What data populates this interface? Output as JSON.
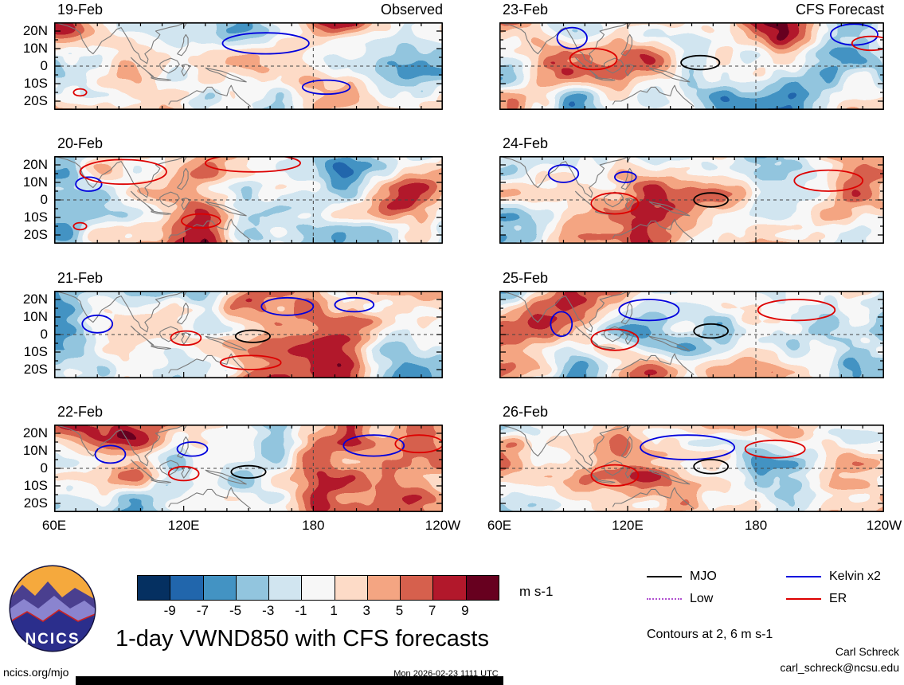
{
  "chart_data": {
    "type": "heatmap",
    "title": "1-day VWND850 with CFS forecasts",
    "variable": "VWND850",
    "units": "m s-1",
    "x_ticks": [
      "60E",
      "120E",
      "180",
      "120W"
    ],
    "x_tick_lons": [
      60,
      120,
      180,
      240
    ],
    "y_ticks": [
      "20N",
      "10N",
      "0",
      "10S",
      "20S"
    ],
    "y_tick_lats": [
      20,
      10,
      0,
      -10,
      -20
    ],
    "lon_range": [
      60,
      240
    ],
    "lat_range": [
      -25,
      25
    ],
    "colorbar": {
      "levels": [
        -9,
        -7,
        -5,
        -3,
        -1,
        1,
        3,
        5,
        7,
        9
      ],
      "colors": [
        "#053061",
        "#2166ac",
        "#4393c3",
        "#92c5de",
        "#d1e5f0",
        "#f7f7f7",
        "#fddbc7",
        "#f4a582",
        "#d6604d",
        "#b2182b",
        "#67001f"
      ],
      "label": "m s-1"
    },
    "legend": [
      {
        "label": "MJO",
        "color": "#000000",
        "style": "solid"
      },
      {
        "label": "Low",
        "color": "#b050d0",
        "style": "dotted"
      },
      {
        "label": "Kelvin x2",
        "color": "#0000dd",
        "style": "solid"
      },
      {
        "label": "ER",
        "color": "#dd0000",
        "style": "solid"
      }
    ],
    "contour_note": "Contours at 2, 6 m s-1",
    "columns": [
      {
        "title": "Observed",
        "panels": [
          {
            "date": "19-Feb",
            "seed": 3,
            "overlays": [
              [
                "Kelvin x2",
                158,
                13,
                20,
                6
              ],
              [
                "Kelvin x2",
                186,
                -12,
                11,
                4
              ],
              [
                "ER",
                72,
                -15,
                3,
                2
              ]
            ]
          },
          {
            "date": "20-Feb",
            "seed": 17,
            "overlays": [
              [
                "Kelvin x2",
                76,
                9,
                6,
                4
              ],
              [
                "ER",
                92,
                16,
                20,
                7
              ],
              [
                "ER",
                152,
                21,
                22,
                5
              ],
              [
                "ER",
                128,
                -12,
                9,
                4
              ],
              [
                "ER",
                72,
                -15,
                3,
                2
              ]
            ]
          },
          {
            "date": "21-Feb",
            "seed": 42,
            "overlays": [
              [
                "Kelvin x2",
                80,
                6,
                7,
                5
              ],
              [
                "Kelvin x2",
                168,
                16,
                12,
                5
              ],
              [
                "Kelvin x2",
                199,
                17,
                9,
                4
              ],
              [
                "ER",
                121,
                -2,
                7,
                4
              ],
              [
                "MJO",
                152,
                -1,
                8,
                3.5
              ],
              [
                "ER",
                151,
                -16,
                14,
                4
              ]
            ]
          },
          {
            "date": "22-Feb",
            "seed": 7,
            "overlays": [
              [
                "Kelvin x2",
                86,
                8,
                7,
                5
              ],
              [
                "Kelvin x2",
                124,
                11,
                7,
                4
              ],
              [
                "Kelvin x2",
                208,
                13,
                14,
                6
              ],
              [
                "ER",
                120,
                -3,
                7,
                4
              ],
              [
                "MJO",
                150,
                -2,
                8,
                3.5
              ],
              [
                "ER",
                229,
                14,
                11,
                5
              ]
            ]
          }
        ]
      },
      {
        "title": "CFS Forecast",
        "panels": [
          {
            "date": "23-Feb",
            "seed": 91,
            "overlays": [
              [
                "Kelvin x2",
                94,
                16,
                7,
                6
              ],
              [
                "ER",
                104,
                4,
                11,
                6
              ],
              [
                "MJO",
                154,
                2,
                9,
                4
              ],
              [
                "Kelvin x2",
                226,
                18,
                11,
                6
              ],
              [
                "ER",
                234,
                13,
                9,
                4
              ]
            ]
          },
          {
            "date": "24-Feb",
            "seed": 64,
            "overlays": [
              [
                "Kelvin x2",
                90,
                15,
                7,
                5
              ],
              [
                "Kelvin x2",
                119,
                13,
                5,
                3
              ],
              [
                "ER",
                114,
                -2,
                11,
                6
              ],
              [
                "MJO",
                159,
                0,
                8,
                4
              ],
              [
                "ER",
                214,
                11,
                16,
                6
              ]
            ]
          },
          {
            "date": "25-Feb",
            "seed": 28,
            "overlays": [
              [
                "Kelvin x2",
                130,
                14,
                14,
                6
              ],
              [
                "Kelvin x2",
                89,
                6,
                5,
                7
              ],
              [
                "ER",
                114,
                -3,
                11,
                6
              ],
              [
                "MJO",
                159,
                2,
                8,
                4
              ],
              [
                "ER",
                199,
                14,
                18,
                6
              ]
            ]
          },
          {
            "date": "26-Feb",
            "seed": 55,
            "overlays": [
              [
                "Kelvin x2",
                148,
                12,
                22,
                7
              ],
              [
                "ER",
                114,
                -4,
                11,
                6
              ],
              [
                "MJO",
                159,
                1,
                8,
                4
              ],
              [
                "ER",
                189,
                11,
                14,
                5
              ]
            ]
          }
        ]
      }
    ],
    "coastlines": [
      [
        [
          60,
          25
        ],
        [
          66,
          23
        ],
        [
          70,
          21
        ],
        [
          72,
          19
        ],
        [
          73,
          15
        ],
        [
          76,
          9
        ],
        [
          78,
          7
        ],
        [
          80,
          10
        ],
        [
          82,
          14
        ],
        [
          86,
          17
        ],
        [
          89,
          21
        ],
        [
          91,
          22
        ],
        [
          92,
          20
        ],
        [
          94,
          16
        ],
        [
          97,
          9
        ],
        [
          99,
          7
        ],
        [
          100,
          4
        ],
        [
          103,
          1.5
        ],
        [
          103.5,
          4
        ],
        [
          102,
          7
        ],
        [
          105,
          10
        ],
        [
          106,
          14
        ],
        [
          108,
          16
        ],
        [
          109,
          18
        ],
        [
          107,
          20
        ],
        [
          110,
          21
        ],
        [
          113,
          22
        ],
        [
          117,
          23
        ],
        [
          121,
          25
        ]
      ],
      [
        [
          95.5,
          5
        ],
        [
          97,
          3
        ],
        [
          100,
          0
        ],
        [
          103,
          -3
        ],
        [
          105,
          -5.5
        ],
        [
          106,
          -6
        ],
        [
          104,
          -4
        ],
        [
          101,
          -1
        ],
        [
          98,
          2
        ],
        [
          95.5,
          5
        ]
      ],
      [
        [
          105,
          -6.2
        ],
        [
          108,
          -7
        ],
        [
          112,
          -7.5
        ],
        [
          114,
          -8
        ],
        [
          112,
          -8.3
        ],
        [
          108,
          -7.8
        ],
        [
          105,
          -6.8
        ],
        [
          105,
          -6.2
        ]
      ],
      [
        [
          109,
          1.5
        ],
        [
          111,
          3
        ],
        [
          114,
          4.5
        ],
        [
          117,
          3
        ],
        [
          118,
          1
        ],
        [
          116,
          -2
        ],
        [
          113,
          -4
        ],
        [
          110,
          -2
        ],
        [
          109,
          0
        ],
        [
          109,
          1.5
        ]
      ],
      [
        [
          119,
          0.5
        ],
        [
          121,
          1
        ],
        [
          123,
          0
        ],
        [
          122,
          -2
        ],
        [
          121,
          -4
        ],
        [
          120,
          -5.5
        ],
        [
          119,
          -3
        ],
        [
          120,
          -1
        ],
        [
          119,
          0.5
        ]
      ],
      [
        [
          130,
          -1
        ],
        [
          134,
          -2
        ],
        [
          138,
          -3
        ],
        [
          142,
          -5
        ],
        [
          146,
          -7
        ],
        [
          149,
          -9
        ],
        [
          146,
          -8.5
        ],
        [
          141,
          -7
        ],
        [
          136,
          -4
        ],
        [
          132,
          -2.5
        ],
        [
          130,
          -1
        ]
      ],
      [
        [
          117,
          7
        ],
        [
          119,
          10
        ],
        [
          120,
          14
        ],
        [
          120,
          16
        ],
        [
          121,
          18
        ],
        [
          122,
          16
        ],
        [
          122,
          12
        ],
        [
          121,
          9
        ],
        [
          119,
          6
        ],
        [
          117,
          7
        ]
      ],
      [
        [
          113,
          -22
        ],
        [
          114,
          -20
        ],
        [
          117,
          -20
        ],
        [
          122,
          -17
        ],
        [
          126,
          -14
        ],
        [
          129,
          -15
        ],
        [
          131,
          -12
        ],
        [
          133,
          -12
        ],
        [
          135,
          -15
        ],
        [
          137,
          -16
        ],
        [
          140,
          -17
        ],
        [
          141,
          -13
        ],
        [
          142,
          -11
        ],
        [
          143,
          -14
        ],
        [
          146,
          -18
        ],
        [
          149,
          -21
        ],
        [
          151,
          -23
        ]
      ],
      [
        [
          120,
          22
        ],
        [
          121.5,
          25
        ]
      ]
    ]
  },
  "footer": {
    "logo_text": "NCICS",
    "site": "ncics.org/mjo",
    "timestamp": "Mon 2026-02-23 1111 UTC",
    "credit_name": "Carl Schreck",
    "credit_email": "carl_schreck@ncsu.edu"
  }
}
